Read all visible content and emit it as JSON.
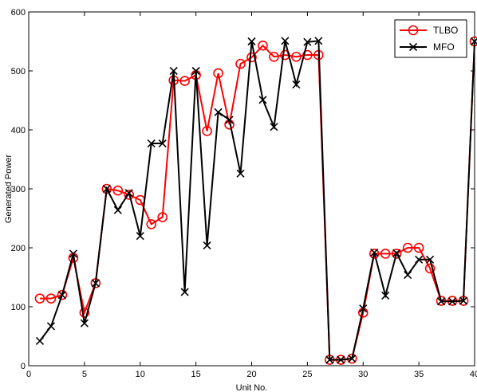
{
  "chart_data": {
    "type": "line",
    "xlabel": "Unit No.",
    "ylabel": "Generated Power",
    "xlim": [
      0,
      40
    ],
    "ylim": [
      0,
      600
    ],
    "xticks": [
      0,
      5,
      10,
      15,
      20,
      25,
      30,
      35,
      40
    ],
    "yticks": [
      0,
      100,
      200,
      300,
      400,
      500,
      600
    ],
    "grid": false,
    "legend_position": "top-right",
    "x": [
      1,
      2,
      3,
      4,
      5,
      6,
      7,
      8,
      9,
      10,
      11,
      12,
      13,
      14,
      15,
      16,
      17,
      18,
      19,
      20,
      21,
      22,
      23,
      24,
      25,
      26,
      27,
      28,
      29,
      30,
      31,
      32,
      33,
      34,
      35,
      36,
      37,
      38,
      39,
      40
    ],
    "series": [
      {
        "name": "TLBO",
        "color": "#ff0000",
        "marker": "circle",
        "values": [
          114,
          114,
          120,
          183,
          90,
          140,
          300,
          297,
          290,
          281,
          240,
          252,
          484,
          483,
          493,
          398,
          496,
          409,
          512,
          523,
          543,
          524,
          527,
          524,
          527,
          527,
          10,
          10,
          12,
          90,
          190,
          190,
          190,
          200,
          200,
          165,
          110,
          110,
          110,
          550
        ]
      },
      {
        "name": "MFO",
        "color": "#000000",
        "marker": "x",
        "values": [
          42,
          67,
          120,
          190,
          72,
          140,
          300,
          264,
          293,
          220,
          377,
          377,
          500,
          125,
          500,
          204,
          430,
          417,
          326,
          550,
          451,
          405,
          551,
          477,
          549,
          551,
          10,
          10,
          12,
          97,
          192,
          119,
          191,
          154,
          180,
          180,
          109,
          109,
          110,
          550
        ]
      }
    ]
  }
}
